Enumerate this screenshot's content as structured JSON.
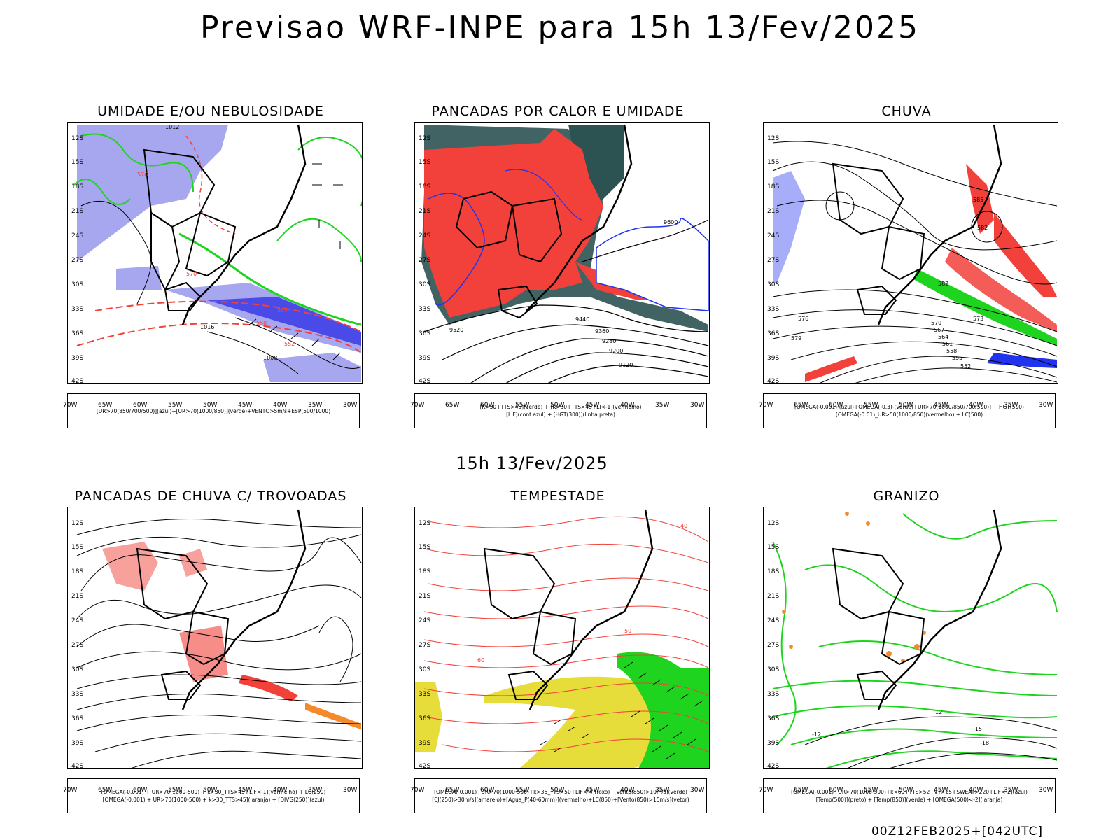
{
  "title": "Previsao WRF-INPE  para 15h 13/Fev/2025",
  "mid_time": "15h 13/Fev/2025",
  "footer": "00Z12FEB2025+[042UTC]",
  "axes": {
    "lat_labels": [
      "12S",
      "15S",
      "18S",
      "21S",
      "24S",
      "27S",
      "30S",
      "33S",
      "36S",
      "39S",
      "42S"
    ],
    "lon_labels": [
      "70W",
      "65W",
      "60W",
      "55W",
      "50W",
      "45W",
      "40W",
      "35W",
      "30W"
    ]
  },
  "colors": {
    "red": "#f2413a",
    "green": "#1fd41f",
    "blue": "#2233ee",
    "lavender": "#a7a7ef",
    "darkteal": "#2c5252",
    "yellow": "#e6dc3a",
    "orange": "#f58a2a"
  },
  "panels": [
    {
      "title": "UMIDADE E/OU NEBULOSIDADE",
      "legend": [
        "[UR>70(850/700/500)](azul)+[UR>70(1000/850)](verde)+VENTO>5m/s+ESP(500/1000)"
      ],
      "labels": [
        "1012",
        "1016",
        "1008",
        "570",
        "576",
        "564",
        "558",
        "552"
      ]
    },
    {
      "title": "PANCADAS POR CALOR E UMIDADE",
      "legend": [
        "[K>30+TTS>45](verde) + [K>30+TTS>45+LI<-1](vermelho)",
        "[LIF](cont.azul) + [HGT(300)](linha preta)"
      ],
      "labels": [
        "9600",
        "9520",
        "9440",
        "9360",
        "9280",
        "9200",
        "9120"
      ]
    },
    {
      "title": "CHUVA",
      "legend": [
        "[OMEGA(-0.001)-(azul)+OMEGA(-0.3)-(verde)+UR>70(1000/850/700/500)] + HGT(500)",
        "[OMEGA(-0.01)_UR>50(1000/850)(vermelho) + LC(500)"
      ],
      "labels": [
        "585",
        "582",
        "579",
        "576",
        "573",
        "570",
        "567",
        "564",
        "561",
        "558",
        "555",
        "552"
      ]
    },
    {
      "title": "PANCADAS DE CHUVA C/ TROVOADAS",
      "legend": [
        "[OMEGA(-0.001) + UR>70(1000-500) + k>30_TTS>45+LIF<-1](vermelho) + LC(250)",
        "[OMEGA(-0.001) + UR>70(1000-500) + k>30_TTS>45](laranja) + [DIVG(250)](azul)"
      ],
      "labels": []
    },
    {
      "title": "TEMPESTADE",
      "legend": [
        "[OMEGA(-0.001)+UR>70(1000-500)+k>35_TTS>50+LIF<-4](roxo)+[Vento(850)>10m/s](verde)",
        "[CJ(250)>30m/s](amarelo)+[Agua_P(40-60mm)](vermelho)+LC(850)+[Vento(850)>15m/s](vetor)"
      ],
      "labels": [
        "40",
        "50",
        "60"
      ]
    },
    {
      "title": "GRANIZO",
      "legend": [
        "[OMEGA(-0.001)+UR>70(1000-500)+k<60+TTS>52+VT>25+SWEAT>220+LIF<-2](azul)",
        "[Temp(500)](preto) + [Temp(850)](verde) + [OMEGA(500)<-2](laranja)"
      ],
      "labels": [
        "12",
        "-12",
        "-15",
        "-18"
      ]
    }
  ]
}
